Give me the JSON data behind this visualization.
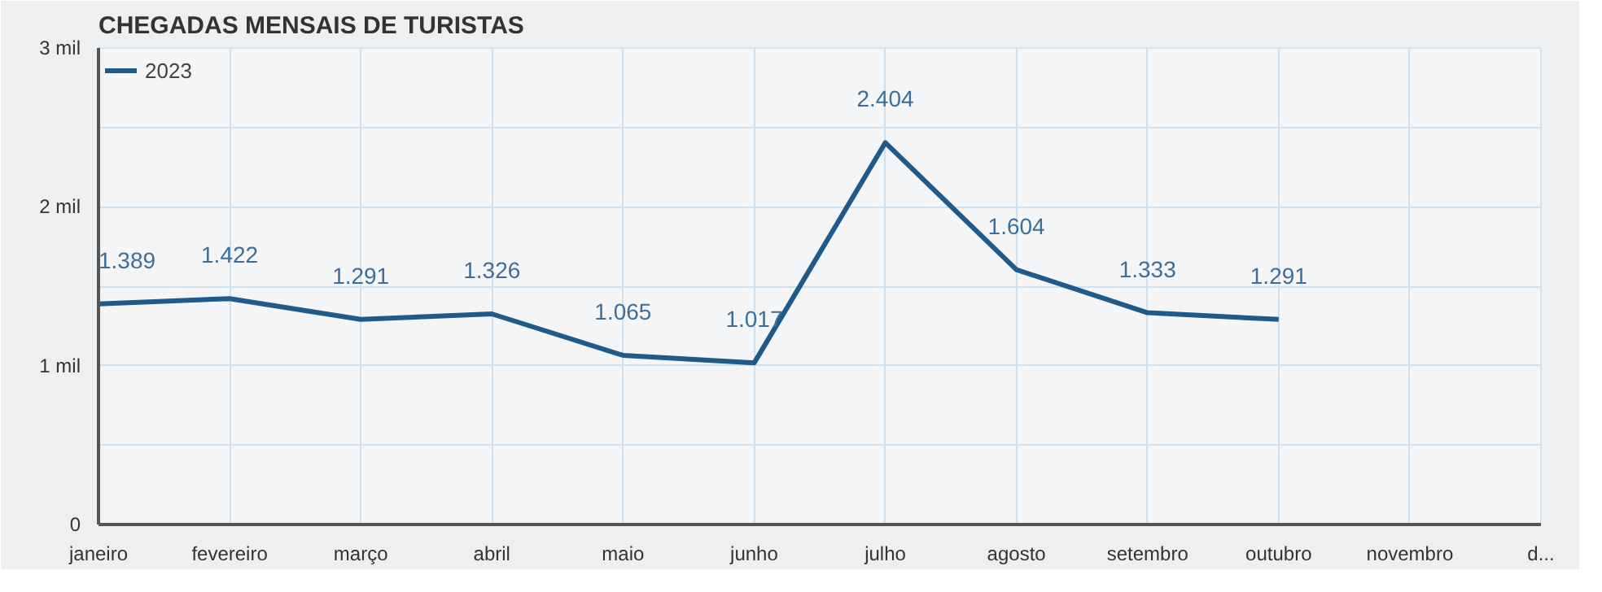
{
  "chart_data": {
    "type": "line",
    "title": "CHEGADAS MENSAIS DE TURISTAS",
    "categories": [
      "janeiro",
      "fevereiro",
      "março",
      "abril",
      "maio",
      "junho",
      "julho",
      "agosto",
      "setembro",
      "outubro",
      "novembro",
      "d..."
    ],
    "series": [
      {
        "name": "2023",
        "color": "#1f5a8a",
        "values": [
          1.389,
          1.422,
          1.291,
          1.326,
          1.065,
          1.017,
          2.404,
          1.604,
          1.333,
          1.291,
          null,
          null
        ],
        "value_labels": [
          "1.389",
          "1.422",
          "1.291",
          "1.326",
          "1.065",
          "1.017",
          "2.404",
          "1.604",
          "1.333",
          "1.291",
          null,
          null
        ]
      }
    ],
    "ylim": [
      0,
      3
    ],
    "yticks": [
      0,
      {
        "value": 0.5,
        "label": null
      },
      {
        "value": 1,
        "label": "1 mil"
      },
      {
        "value": 1.5,
        "label": null
      },
      {
        "value": 2,
        "label": "2 mil"
      },
      {
        "value": 2.5,
        "label": null
      },
      {
        "value": 3,
        "label": "3 mil"
      }
    ],
    "grid": true,
    "legend": "top left",
    "line_style": "solid"
  }
}
